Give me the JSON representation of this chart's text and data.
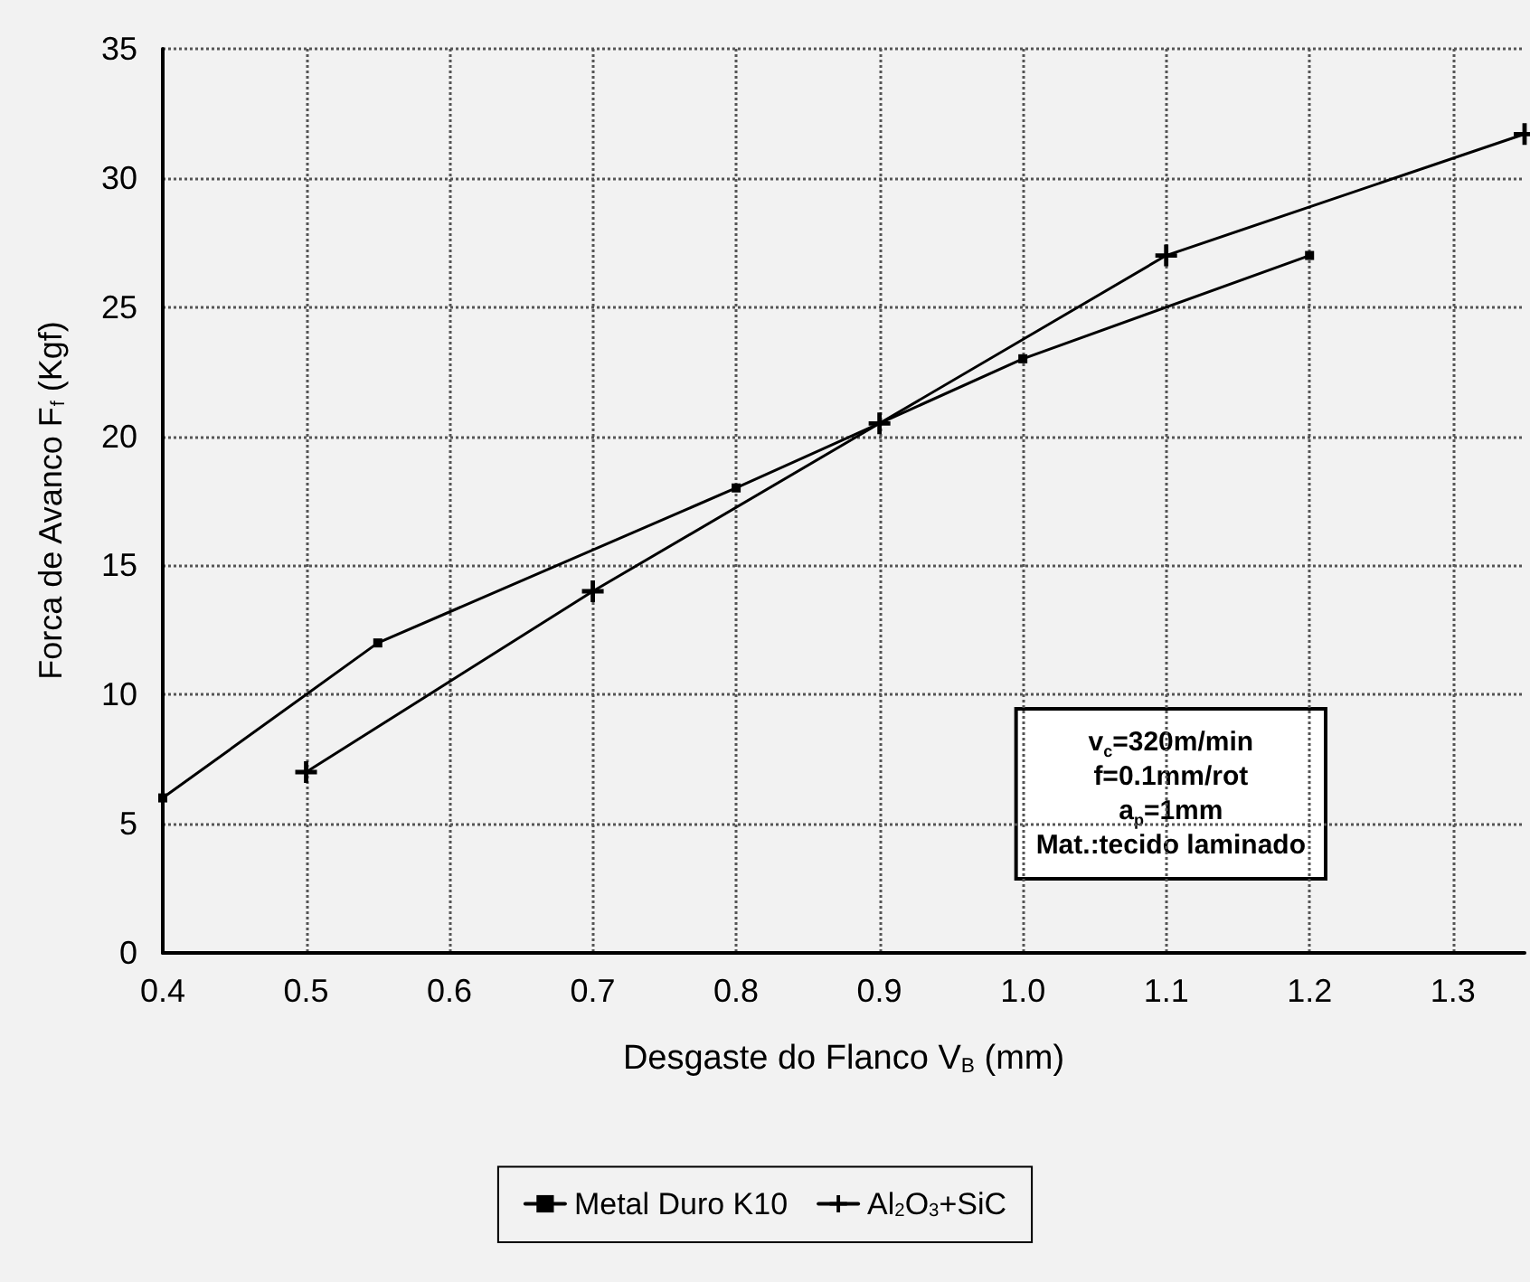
{
  "chart_data": {
    "type": "line",
    "xlabel": "Desgaste do Flanco V$_{B}$ (mm)",
    "ylabel": "Forca de Avanco F$_{f}$ (Kgf)",
    "xlim": [
      0.4,
      1.35
    ],
    "xticks": [
      {
        "value": 0.4,
        "label": "0.4"
      },
      0.5,
      0.6,
      0.7,
      0.8,
      0.9,
      {
        "value": 1.0,
        "label": "1.0"
      },
      1.1,
      1.2,
      1.3
    ],
    "ylim": [
      0,
      35
    ],
    "yticks": [
      0,
      5,
      10,
      15,
      20,
      25,
      30,
      35
    ],
    "grid": true,
    "legend": "bottom",
    "line_style": "solid",
    "annotations": [
      "v$_{c}$=320m/min\nf=0.1mm/rot\na$_{p}$=1mm\nMat.:tecido laminado"
    ],
    "series": [
      {
        "name": "Metal Duro K10",
        "color": "#000000",
        "marker": "square",
        "x": [
          0.4,
          0.55,
          0.8,
          1.0,
          1.2
        ],
        "values": [
          6,
          12,
          18,
          23,
          27
        ]
      },
      {
        "name": "Al$_{2}$O$_{3}$+SiC",
        "color": "#000000",
        "marker": "cross",
        "x": [
          0.5,
          0.7,
          0.9,
          1.1,
          1.35
        ],
        "values": [
          7,
          14,
          20.5,
          27,
          31.7
        ]
      }
    ]
  }
}
